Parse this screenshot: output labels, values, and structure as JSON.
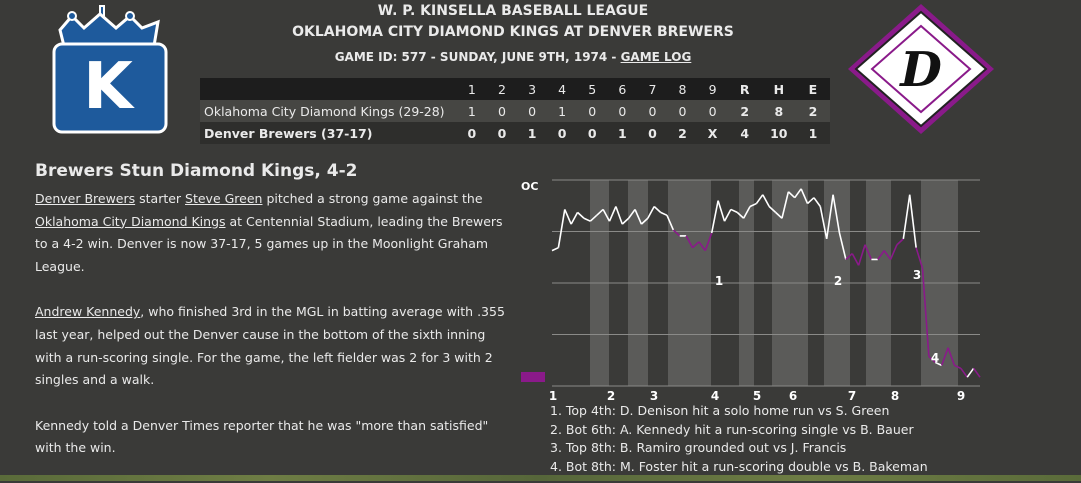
{
  "header": {
    "league": "W. P. KINSELLA BASEBALL LEAGUE",
    "matchup": "OKLAHOMA CITY DIAMOND KINGS AT DENVER BREWERS",
    "game_info": "GAME ID: 577 - SUNDAY, JUNE 9TH, 1974 - ",
    "game_log_link": "GAME LOG"
  },
  "logos": {
    "home_logo_letter": "K",
    "away_logo_letter": "D",
    "home_color": "#1e5a9c",
    "away_color": "#8a1a8a"
  },
  "linescore": {
    "headers": [
      "",
      "1",
      "2",
      "3",
      "4",
      "5",
      "6",
      "7",
      "8",
      "9",
      "R",
      "H",
      "E"
    ],
    "rows": [
      {
        "team": "Oklahoma City Diamond Kings (29-28)",
        "cells": [
          "1",
          "0",
          "0",
          "1",
          "0",
          "0",
          "0",
          "0",
          "0",
          "2",
          "8",
          "2"
        ]
      },
      {
        "team": "Denver Brewers (37-17)",
        "cells": [
          "0",
          "0",
          "1",
          "0",
          "0",
          "1",
          "0",
          "2",
          "X",
          "4",
          "10",
          "1"
        ]
      }
    ]
  },
  "story": {
    "headline": "Brewers Stun Diamond Kings, 4-2",
    "p1": {
      "link1": "Denver Brewers",
      "t1": " starter ",
      "link2": "Steve Green",
      "t2": " pitched a strong game against the ",
      "link3": "Oklahoma City Diamond Kings",
      "t3": " at Centennial Stadium, leading the Brewers to a 4-2 win. Denver is now 37-17, 5 games up in the Moonlight Graham League."
    },
    "p2": {
      "link1": "Andrew Kennedy",
      "t1": ", who finished 3rd in the MGL in batting average with .355 last year, helped out the Denver cause in the bottom of the sixth inning with a run-scoring single. For the game, the left fielder was 2 for 3 with 2 singles and a walk."
    },
    "p3": "Kennedy told a Denver Times reporter that he was \"more than satisfied\" with the win."
  },
  "chart_data": {
    "type": "line",
    "top_label": "OC",
    "x_labels": [
      "1",
      "2",
      "3",
      "4",
      "5",
      "6",
      "7",
      "8",
      "9"
    ],
    "highlight_labels": [
      "1",
      "2",
      "3",
      "4"
    ],
    "colors": {
      "away": "#ffffff",
      "home": "#8a1a8a",
      "band": "#5b5b59",
      "grid": "#8a8a88"
    },
    "series": [
      {
        "values": [
          0.41,
          0.42,
          0.55,
          0.5,
          0.54,
          0.52,
          0.51,
          0.53,
          0.55,
          0.51,
          0.56,
          0.5,
          0.52,
          0.55,
          0.5,
          0.52,
          0.56,
          0.54,
          0.53,
          0.48,
          0.46,
          0.46,
          0.42,
          0.44,
          0.41,
          0.47,
          0.58,
          0.51,
          0.55,
          0.54,
          0.52,
          0.56,
          0.57,
          0.6,
          0.56,
          0.54,
          0.52,
          0.61,
          0.59,
          0.62,
          0.57,
          0.59,
          0.56,
          0.45,
          0.6,
          0.47,
          0.38,
          0.4,
          0.36,
          0.43,
          0.38,
          0.38,
          0.41,
          0.38,
          0.43,
          0.45,
          0.6,
          0.42,
          0.35,
          0.05,
          0.03,
          0.02,
          0.08,
          0.02,
          0.01,
          -0.02,
          0.01,
          -0.02
        ]
      }
    ]
  },
  "key_plays": [
    "1. Top 4th: D. Denison hit a solo home run vs S. Green",
    "2. Bot 6th: A. Kennedy hit a run-scoring single vs B. Bauer",
    "3. Top 8th: B. Ramiro grounded out vs J. Francis",
    "4. Bot 8th: M. Foster hit a run-scoring double vs B. Bakeman"
  ]
}
